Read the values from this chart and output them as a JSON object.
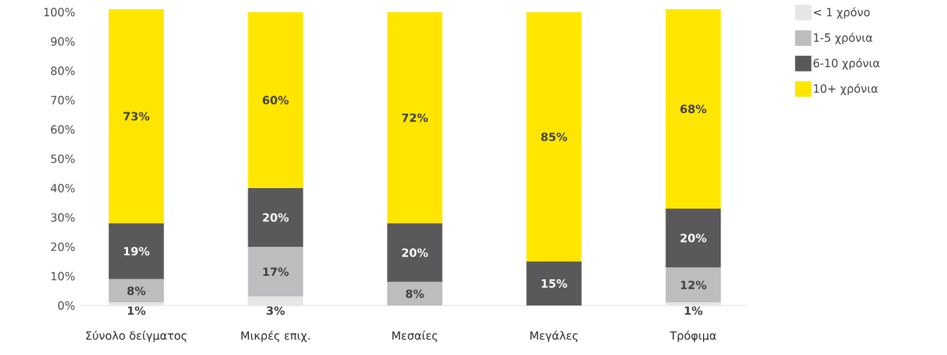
{
  "chart_data": {
    "type": "bar",
    "stacked": true,
    "categories": [
      "Σύνολο δείγματος",
      "Μικρές επιχ.",
      "Μεσαίες",
      "Μεγάλες",
      "Τρόφιμα"
    ],
    "series": [
      {
        "name": "< 1 χρόνο",
        "color": "#e6e6e6",
        "values": [
          1,
          3,
          0,
          0,
          1
        ],
        "value_labels": [
          "1%",
          "3%",
          null,
          null,
          "1%"
        ]
      },
      {
        "name": "1-5 χρόνια",
        "color": "#bdbdbf",
        "values": [
          8,
          17,
          8,
          0,
          12
        ],
        "value_labels": [
          "8%",
          "17%",
          "8%",
          null,
          "12%"
        ]
      },
      {
        "name": "6-10 χρόνια",
        "color": "#59595c",
        "values": [
          19,
          20,
          20,
          15,
          20
        ],
        "value_labels": [
          "19%",
          "20%",
          "20%",
          "15%",
          "20%"
        ]
      },
      {
        "name": "10+ χρόνια",
        "color": "#ffe600",
        "values": [
          73,
          60,
          72,
          85,
          68
        ],
        "value_labels": [
          "73%",
          "60%",
          "72%",
          "85%",
          "68%"
        ]
      }
    ],
    "ylim": [
      0,
      101
    ],
    "yticks": [
      {
        "value": 0,
        "label": "0%"
      },
      {
        "value": 10,
        "label": "10%"
      },
      {
        "value": 20,
        "label": "20%"
      },
      {
        "value": 30,
        "label": "30%"
      },
      {
        "value": 40,
        "label": "40%"
      },
      {
        "value": 50,
        "label": "50%"
      },
      {
        "value": 60,
        "label": "60%"
      },
      {
        "value": 70,
        "label": "70%"
      },
      {
        "value": 80,
        "label": "80%"
      },
      {
        "value": 90,
        "label": "90%"
      },
      {
        "value": 100,
        "label": "100%"
      }
    ],
    "grid": false,
    "legend": "right"
  }
}
